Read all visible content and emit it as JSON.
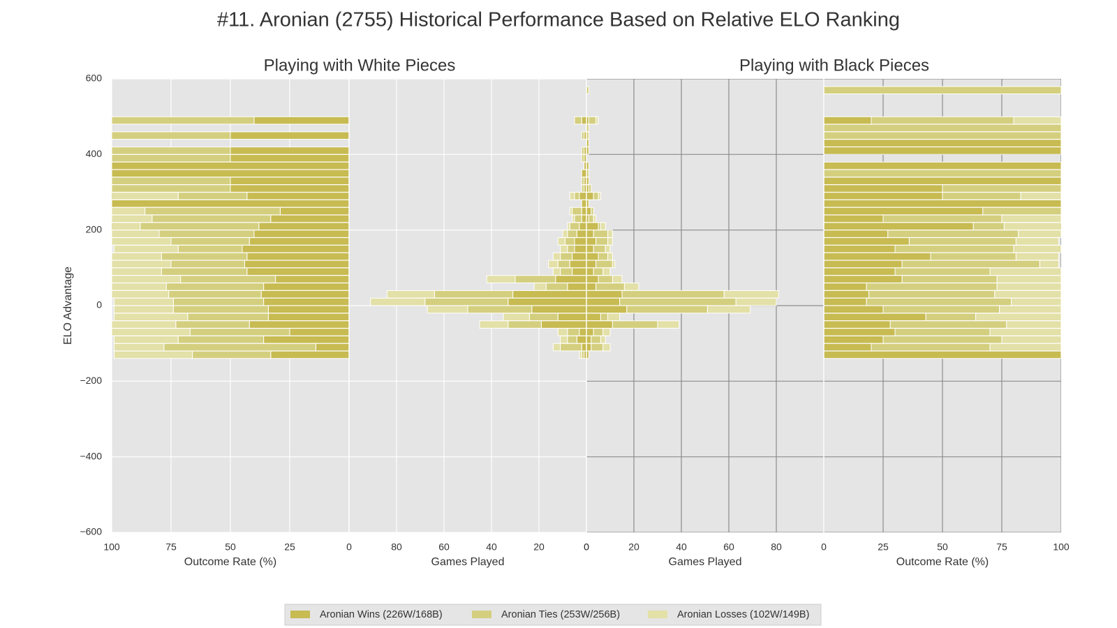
{
  "title": "#11. Aronian (2755) Historical Performance Based on Relative ELO Ranking",
  "chart_data": [
    {
      "type": "barh",
      "title": "Playing with White Pieces",
      "xlabel": "Outcome Rate (%)",
      "ylabel": "ELO Advantage",
      "xlim": [
        100,
        0
      ],
      "xticks": [
        100,
        75,
        50,
        25,
        0
      ],
      "ylim": [
        -600,
        600
      ],
      "yticks": [
        {
          "value": 600,
          "label": "600"
        },
        {
          "value": 400,
          "label": "400"
        },
        {
          "value": 200,
          "label": "200"
        },
        {
          "value": 0,
          "label": "0"
        },
        {
          "value": -200,
          "label": "−200"
        },
        {
          "value": -400,
          "label": "−400"
        },
        {
          "value": -600,
          "label": "−600"
        }
      ],
      "grid": true,
      "grid_color": "#ffffff",
      "y": [
        490,
        470,
        450,
        430,
        410,
        390,
        370,
        350,
        330,
        310,
        290,
        270,
        250,
        230,
        210,
        190,
        170,
        150,
        130,
        110,
        90,
        70,
        50,
        30,
        10,
        -10,
        -30,
        -50,
        -70,
        -90,
        -110,
        -130
      ],
      "series": [
        {
          "name": "Aronian Wins (226W/168B)",
          "color": "#c7bb52",
          "values": [
            40,
            null,
            50,
            null,
            50,
            50,
            100,
            100,
            50,
            50,
            43,
            100,
            29,
            33,
            38,
            40,
            42,
            45,
            43,
            44,
            43,
            31,
            36,
            37,
            36,
            34,
            34,
            42,
            25,
            36,
            14,
            33
          ]
        },
        {
          "name": "Aronian Ties (253W/256B)",
          "color": "#d4cf7f",
          "values": [
            60,
            null,
            50,
            null,
            50,
            50,
            0,
            0,
            50,
            50,
            29,
            0,
            57,
            50,
            50,
            40,
            33,
            27,
            36,
            31,
            36,
            40,
            41,
            39,
            38,
            40,
            34,
            31,
            42,
            36,
            64,
            33
          ]
        },
        {
          "name": "Aronian Losses (102W/149B)",
          "color": "#e3e0a8",
          "values": [
            0,
            null,
            0,
            null,
            0,
            0,
            0,
            0,
            0,
            0,
            29,
            0,
            14,
            17,
            13,
            20,
            25,
            27,
            21,
            25,
            21,
            29,
            23,
            24,
            25,
            25,
            31,
            27,
            33,
            27,
            21,
            33
          ]
        }
      ]
    },
    {
      "type": "barh",
      "xlabel": "Games Played",
      "xlim": [
        100,
        0
      ],
      "xticks": [
        80,
        60,
        40,
        20,
        0
      ],
      "ylim": [
        -600,
        600
      ],
      "yticks": [
        600,
        400,
        200,
        0,
        -200,
        -400,
        -600
      ],
      "grid": true,
      "grid_color": "#ffffff",
      "y": [
        490,
        470,
        450,
        430,
        410,
        390,
        370,
        350,
        330,
        310,
        290,
        270,
        250,
        230,
        210,
        190,
        170,
        150,
        130,
        110,
        90,
        70,
        50,
        30,
        10,
        -10,
        -30,
        -50,
        -70,
        -90,
        -110,
        -130
      ],
      "series": [
        {
          "color": "#c7bb52",
          "values": [
            2,
            null,
            1,
            null,
            1,
            1,
            1,
            2,
            1,
            1,
            3,
            2,
            2,
            2,
            3,
            4,
            5,
            5,
            6,
            7,
            6,
            13,
            8,
            31,
            33,
            23,
            12,
            19,
            3,
            4,
            2,
            1
          ]
        },
        {
          "color": "#d4cf7f",
          "values": [
            3,
            null,
            1,
            null,
            1,
            1,
            0,
            0,
            1,
            1,
            2,
            0,
            4,
            3,
            4,
            4,
            4,
            3,
            5,
            5,
            5,
            17,
            9,
            33,
            35,
            27,
            12,
            14,
            5,
            4,
            9,
            1
          ]
        },
        {
          "color": "#e3e0a8",
          "values": [
            0,
            null,
            0,
            null,
            0,
            0,
            0,
            0,
            0,
            0,
            2,
            0,
            1,
            1,
            1,
            2,
            3,
            3,
            3,
            4,
            3,
            12,
            5,
            20,
            23,
            17,
            11,
            12,
            4,
            3,
            3,
            1
          ]
        }
      ]
    },
    {
      "type": "barh",
      "title": "Playing with Black Pieces",
      "xlabel": "Games Played",
      "xlim": [
        0,
        100
      ],
      "xticks": [
        0,
        20,
        40,
        60,
        80
      ],
      "ylim": [
        -600,
        600
      ],
      "yticks": [
        600,
        400,
        200,
        0,
        -200,
        -400,
        -600
      ],
      "grid": true,
      "grid_color": "#8c8c8c",
      "y": [
        570,
        550,
        530,
        510,
        490,
        470,
        450,
        430,
        410,
        390,
        370,
        350,
        330,
        310,
        290,
        270,
        250,
        230,
        210,
        190,
        170,
        150,
        130,
        110,
        90,
        70,
        50,
        30,
        10,
        -10,
        -30,
        -50,
        -70,
        -90,
        -110,
        -130
      ],
      "series": [
        {
          "color": "#c7bb52",
          "values": [
            0,
            null,
            null,
            null,
            1,
            0,
            0,
            1,
            1,
            null,
            1,
            0,
            1,
            1,
            3,
            1,
            2,
            1,
            5,
            3,
            4,
            3,
            5,
            4,
            3,
            5,
            4,
            15,
            14,
            17,
            6,
            11,
            3,
            2,
            2,
            1
          ]
        },
        {
          "color": "#d4cf7f",
          "values": [
            1,
            null,
            null,
            null,
            3,
            1,
            1,
            0,
            0,
            null,
            0,
            1,
            0,
            1,
            2,
            0,
            1,
            2,
            1,
            6,
            5,
            5,
            4,
            7,
            4,
            6,
            12,
            43,
            49,
            34,
            3,
            19,
            4,
            4,
            5,
            0
          ]
        },
        {
          "color": "#e3e0a8",
          "values": [
            0,
            null,
            null,
            null,
            1,
            0,
            0,
            0,
            0,
            null,
            0,
            0,
            0,
            0,
            1,
            0,
            0,
            1,
            2,
            2,
            2,
            2,
            2,
            1,
            3,
            4,
            6,
            23,
            17,
            18,
            5,
            9,
            3,
            2,
            3,
            0
          ]
        }
      ]
    },
    {
      "type": "barh",
      "xlabel": "Outcome Rate (%)",
      "xlim": [
        0,
        100
      ],
      "xticks": [
        0,
        25,
        50,
        75,
        100
      ],
      "ylim": [
        -600,
        600
      ],
      "yticks": [
        600,
        400,
        200,
        0,
        -200,
        -400,
        -600
      ],
      "grid": true,
      "grid_color": "#8c8c8c",
      "y": [
        570,
        550,
        530,
        510,
        490,
        470,
        450,
        430,
        410,
        390,
        370,
        350,
        330,
        310,
        290,
        270,
        250,
        230,
        210,
        190,
        170,
        150,
        130,
        110,
        90,
        70,
        50,
        30,
        10,
        -10,
        -30,
        -50,
        -70,
        -90,
        -110,
        -130
      ],
      "series": [
        {
          "color": "#c7bb52",
          "values": [
            0,
            null,
            null,
            null,
            20,
            0,
            0,
            100,
            100,
            null,
            100,
            0,
            100,
            50,
            50,
            100,
            67,
            25,
            63,
            27,
            36,
            30,
            45,
            33,
            30,
            33,
            18,
            19,
            18,
            25,
            43,
            28,
            30,
            25,
            20,
            100
          ]
        },
        {
          "color": "#d4cf7f",
          "values": [
            100,
            null,
            null,
            null,
            60,
            100,
            100,
            0,
            0,
            null,
            0,
            100,
            0,
            50,
            33,
            0,
            33,
            50,
            13,
            55,
            45,
            50,
            36,
            58,
            40,
            40,
            55,
            53,
            61,
            49,
            21,
            49,
            40,
            50,
            50,
            0
          ]
        },
        {
          "color": "#e3e0a8",
          "values": [
            0,
            null,
            null,
            null,
            20,
            0,
            0,
            0,
            0,
            null,
            0,
            0,
            0,
            0,
            17,
            0,
            0,
            25,
            25,
            18,
            18,
            20,
            18,
            8,
            30,
            27,
            27,
            28,
            21,
            26,
            36,
            23,
            30,
            25,
            30,
            0
          ]
        }
      ]
    }
  ]
}
